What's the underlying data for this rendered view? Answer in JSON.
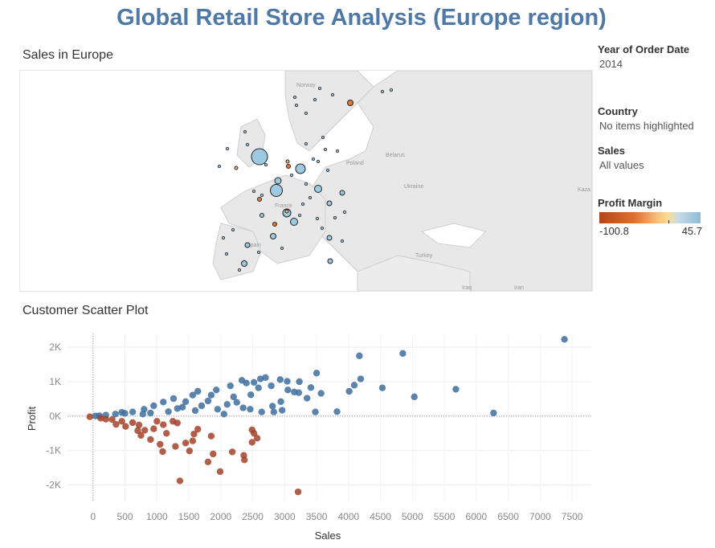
{
  "page_title": "Global Retail Store Analysis (Europe region)",
  "map": {
    "title": "Sales in Europe",
    "place_labels": [
      "Norway",
      "Belarus",
      "Poland",
      "Ukraine",
      "France",
      "Spain",
      "Turkey",
      "Iraq",
      "Iran",
      "Kaza"
    ]
  },
  "filters": {
    "year": {
      "label": "Year of Order Date",
      "value": "2014"
    },
    "country": {
      "label": "Country",
      "value": "No items highlighted"
    },
    "sales": {
      "label": "Sales",
      "value": "All values"
    },
    "profit_margin": {
      "label": "Profit Margin",
      "min": "-100.8",
      "max": "45.7"
    }
  },
  "colors": {
    "positive": "#3d6e9e",
    "negative": "#a3422a",
    "map_bubble": "#9ecae1",
    "map_bubble_neg": "#e07a3a"
  },
  "scatter": {
    "title": "Customer Scatter Plot"
  },
  "chart_data": {
    "type": "scatter",
    "title": "Customer Scatter Plot",
    "xlabel": "Sales",
    "ylabel": "Profit",
    "xlim": [
      -400,
      7800
    ],
    "ylim": [
      -2500,
      2400
    ],
    "x_ticks": [
      0,
      500,
      1000,
      1500,
      2000,
      2500,
      3000,
      3500,
      4000,
      4500,
      5000,
      5500,
      6000,
      6500,
      7000,
      7500
    ],
    "x_tick_labels": [
      "0",
      "500",
      "1000",
      "1500",
      "2000",
      "2500",
      "3000",
      "3500",
      "4000",
      "4500",
      "5000",
      "5500",
      "6000",
      "6500",
      "7000",
      "7500"
    ],
    "y_ticks": [
      -2000,
      -1000,
      0,
      1000,
      2000
    ],
    "y_tick_labels": [
      "-2K",
      "-1K",
      "0K",
      "1K",
      "2K"
    ],
    "grid": true,
    "points": [
      [
        7380,
        2230
      ],
      [
        4850,
        1820
      ],
      [
        4170,
        1750
      ],
      [
        3500,
        1250
      ],
      [
        4190,
        1080
      ],
      [
        4090,
        900
      ],
      [
        4010,
        720
      ],
      [
        4530,
        820
      ],
      [
        5030,
        560
      ],
      [
        5680,
        780
      ],
      [
        6270,
        90
      ],
      [
        3230,
        1000
      ],
      [
        3410,
        830
      ],
      [
        3040,
        1010
      ],
      [
        2790,
        880
      ],
      [
        3220,
        680
      ],
      [
        3350,
        520
      ],
      [
        3570,
        660
      ],
      [
        2940,
        420
      ],
      [
        2810,
        290
      ],
      [
        2590,
        820
      ],
      [
        2470,
        620
      ],
      [
        2620,
        1080
      ],
      [
        2400,
        960
      ],
      [
        2150,
        880
      ],
      [
        2200,
        560
      ],
      [
        2350,
        240
      ],
      [
        1930,
        760
      ],
      [
        1800,
        440
      ],
      [
        3480,
        120
      ],
      [
        3820,
        130
      ],
      [
        2640,
        120
      ],
      [
        2050,
        60
      ],
      [
        1560,
        610
      ],
      [
        1450,
        420
      ],
      [
        1700,
        300
      ],
      [
        1260,
        510
      ],
      [
        1100,
        410
      ],
      [
        950,
        300
      ],
      [
        800,
        200
      ],
      [
        1320,
        220
      ],
      [
        1600,
        160
      ],
      [
        2100,
        340
      ],
      [
        2250,
        400
      ],
      [
        620,
        120
      ],
      [
        500,
        80
      ],
      [
        350,
        60
      ],
      [
        200,
        30
      ],
      [
        100,
        10
      ],
      [
        40,
        5
      ],
      [
        900,
        90
      ],
      [
        1180,
        130
      ],
      [
        780,
        60
      ],
      [
        450,
        110
      ],
      [
        1400,
        260
      ],
      [
        1950,
        200
      ],
      [
        2830,
        120
      ],
      [
        2960,
        170
      ],
      [
        2460,
        200
      ],
      [
        1850,
        610
      ],
      [
        1640,
        720
      ],
      [
        2700,
        1120
      ],
      [
        3050,
        760
      ],
      [
        3150,
        700
      ],
      [
        2330,
        1040
      ],
      [
        2520,
        980
      ],
      [
        2930,
        1060
      ],
      [
        -50,
        -20
      ],
      [
        120,
        -60
      ],
      [
        200,
        -90
      ],
      [
        360,
        -240
      ],
      [
        510,
        -300
      ],
      [
        620,
        -190
      ],
      [
        720,
        -260
      ],
      [
        810,
        -410
      ],
      [
        950,
        -370
      ],
      [
        1100,
        -250
      ],
      [
        1250,
        -150
      ],
      [
        900,
        -680
      ],
      [
        1050,
        -820
      ],
      [
        1150,
        -500
      ],
      [
        1320,
        -200
      ],
      [
        1450,
        -780
      ],
      [
        1560,
        -720
      ],
      [
        1580,
        -520
      ],
      [
        1850,
        -580
      ],
      [
        1880,
        -1100
      ],
      [
        1090,
        -1030
      ],
      [
        1290,
        -880
      ],
      [
        750,
        -560
      ],
      [
        1510,
        -1010
      ],
      [
        1800,
        -1330
      ],
      [
        2180,
        -1040
      ],
      [
        2360,
        -1140
      ],
      [
        2490,
        -760
      ],
      [
        2520,
        -500
      ],
      [
        2570,
        -640
      ],
      [
        2490,
        -400
      ],
      [
        1360,
        -1880
      ],
      [
        1990,
        -1610
      ],
      [
        3210,
        -2200
      ],
      [
        2370,
        -1270
      ],
      [
        1000,
        -150
      ],
      [
        450,
        -150
      ],
      [
        300,
        -100
      ],
      [
        1640,
        -380
      ],
      [
        700,
        -420
      ]
    ]
  }
}
